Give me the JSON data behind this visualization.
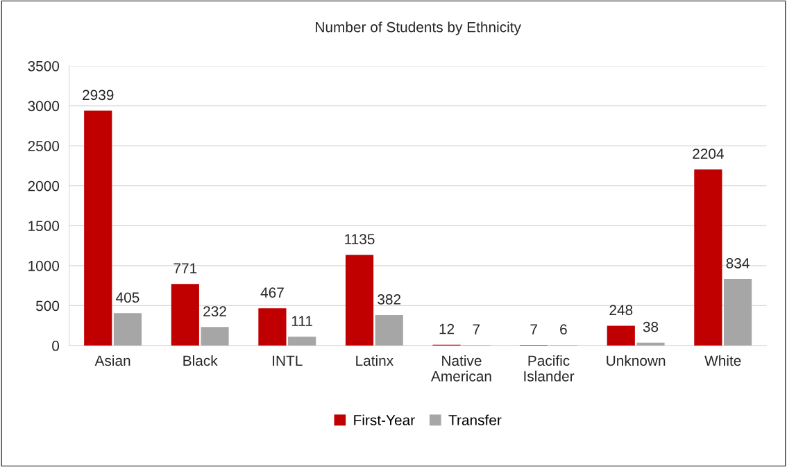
{
  "chart_data": {
    "type": "bar",
    "title": "Number of Students by Ethnicity",
    "categories": [
      "Asian",
      "Black",
      "INTL",
      "Latinx",
      "Native\nAmerican",
      "Pacific\nIslander",
      "Unknown",
      "White"
    ],
    "series": [
      {
        "name": "First-Year",
        "color": "#c00000",
        "values": [
          2939,
          771,
          467,
          1135,
          12,
          7,
          248,
          2204
        ]
      },
      {
        "name": "Transfer",
        "color": "#a6a6a6",
        "values": [
          405,
          232,
          111,
          382,
          7,
          6,
          38,
          834
        ]
      }
    ],
    "ylim": [
      0,
      3500
    ],
    "yticks": [
      0,
      500,
      1000,
      1500,
      2000,
      2500,
      3000,
      3500
    ],
    "grid": "y",
    "legend": "bottom",
    "data_labels": true
  }
}
